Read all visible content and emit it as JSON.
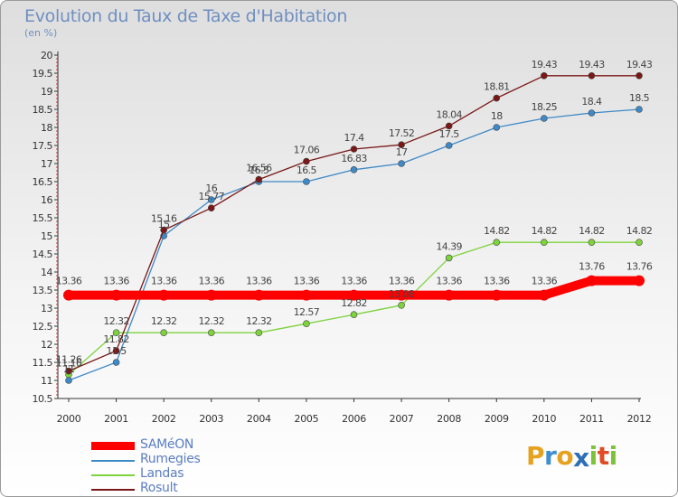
{
  "chart_data": {
    "type": "line",
    "title": "Evolution du Taux de Taxe d'Habitation",
    "subtitle": "(en %)",
    "xlabel": "",
    "ylabel": "",
    "categories": [
      "2000",
      "2001",
      "2002",
      "2003",
      "2004",
      "2005",
      "2006",
      "2007",
      "2008",
      "2009",
      "2010",
      "2011",
      "2012"
    ],
    "ylim": [
      10.5,
      20
    ],
    "ytick_step": 0.5,
    "grid": false,
    "legend_position": "bottom-left",
    "series": [
      {
        "name": "SAMéON",
        "color": "#ff0000",
        "values": [
          13.36,
          13.36,
          13.36,
          13.36,
          13.36,
          13.36,
          13.36,
          13.36,
          13.36,
          13.36,
          13.36,
          13.76,
          13.76
        ]
      },
      {
        "name": "Rumegies",
        "color": "#3f89c6",
        "values": [
          11,
          11.5,
          15,
          16,
          16.5,
          16.5,
          16.83,
          17,
          17.5,
          18,
          18.25,
          18.4,
          18.5
        ]
      },
      {
        "name": "Landas",
        "color": "#7dd23d",
        "values": [
          11.16,
          12.32,
          12.32,
          12.32,
          12.32,
          12.57,
          12.82,
          13.08,
          14.39,
          14.82,
          14.82,
          14.82,
          14.82
        ]
      },
      {
        "name": "Rosult",
        "color": "#7a1818",
        "values": [
          11.26,
          11.82,
          15.16,
          15.77,
          16.56,
          17.06,
          17.4,
          17.52,
          18.04,
          18.81,
          19.43,
          19.43,
          19.43
        ]
      }
    ],
    "point_labels": [
      [
        "13.36",
        "13.36",
        "13.36",
        "13.36",
        "13.36",
        "13.36",
        "13.36",
        "13.36",
        "13.36",
        "13.36",
        "13.36",
        "13.76",
        "13.76"
      ],
      [
        "11",
        "11.5",
        "15",
        "16",
        "16.5",
        "16.5",
        "16.83",
        "17",
        "17.5",
        "18",
        "18.25",
        "18.4",
        "18.5"
      ],
      [
        "11.16",
        "12.32",
        "12.32",
        "12.32",
        "12.32",
        "12.57",
        "12.82",
        "13.08",
        "14.39",
        "14.82",
        "14.82",
        "14.82",
        "14.82"
      ],
      [
        "11.26",
        "11.82",
        "15.16",
        "15.77",
        "16.56",
        "17.06",
        "17.4",
        "17.52",
        "18.04",
        "18.81",
        "19.43",
        "19.43",
        "19.43"
      ]
    ]
  },
  "logo": {
    "letters": [
      "P",
      "r",
      "o",
      "x",
      "i",
      "t",
      "i"
    ],
    "colors": [
      "#e6a21e",
      "#3e8ed0",
      "#e6a21e",
      "#2f6fb8",
      "#7dc23b",
      "#e04a24",
      "#7dc23b"
    ]
  }
}
